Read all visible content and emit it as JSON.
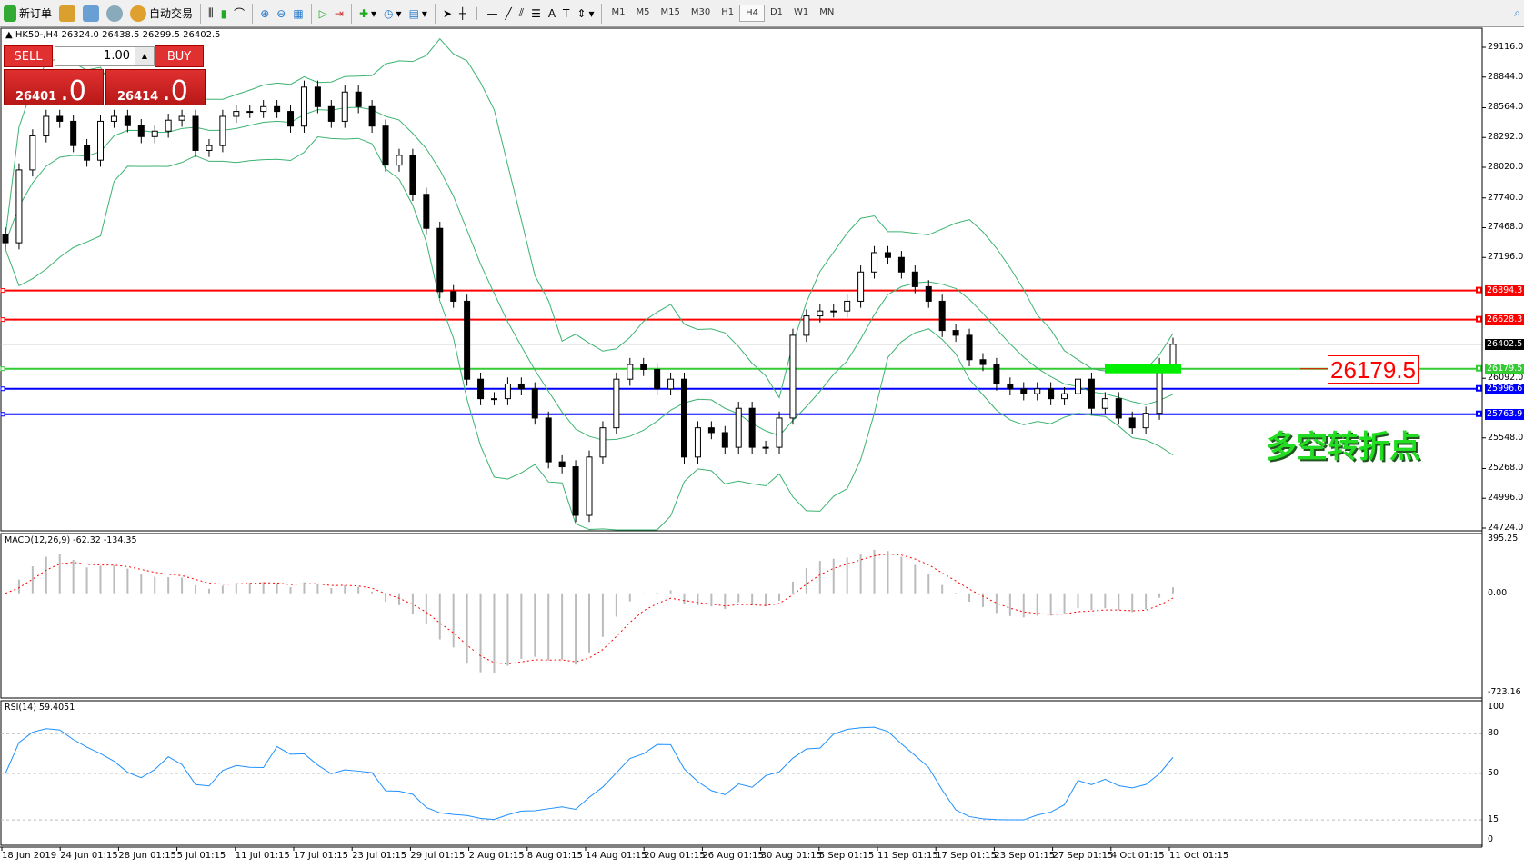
{
  "toolbar": {
    "new_order": "新订单",
    "auto_trading": "自动交易",
    "timeframes": [
      "M1",
      "M5",
      "M15",
      "M30",
      "H1",
      "H4",
      "D1",
      "W1",
      "MN"
    ],
    "active_timeframe": "H4"
  },
  "header": {
    "symbol": "HK50-,H4",
    "ohlc": "26324.0 26438.5 26299.5 26402.5"
  },
  "trade_panel": {
    "sell": "SELL",
    "buy": "BUY",
    "lot": "1.00",
    "bid_main": "26401",
    "bid_frac": ".0",
    "ask_main": "26414",
    "ask_frac": ".0"
  },
  "price_axis": {
    "max": 29116,
    "min": 24724,
    "ticks": [
      "29116.0",
      "28844.0",
      "28564.0",
      "28292.0",
      "28020.0",
      "27740.0",
      "27468.0",
      "27196.0",
      "26092.0",
      "25548.0",
      "25268.0",
      "24996.0",
      "24724.0"
    ]
  },
  "levels": [
    {
      "value": "26894.3",
      "color": "#ff0000"
    },
    {
      "value": "26628.3",
      "color": "#ff0000"
    },
    {
      "value": "26402.5",
      "color": "#000000",
      "kind": "current"
    },
    {
      "value": "26179.5",
      "color": "#33cc33"
    },
    {
      "value": "25996.6",
      "color": "#0000ff"
    },
    {
      "value": "25763.9",
      "color": "#0000ff"
    }
  ],
  "annotation": {
    "box_label": "26179.5",
    "text": "多空转折点",
    "text_color": "#22dd22"
  },
  "closes": [
    27330,
    27996,
    28307,
    28485,
    28440,
    28218,
    28085,
    28440,
    28485,
    28400,
    28300,
    28350,
    28450,
    28485,
    28174,
    28218,
    28485,
    28530,
    28530,
    28574,
    28530,
    28396,
    28752,
    28574,
    28440,
    28707,
    28574,
    28396,
    28040,
    28129,
    27773,
    27462,
    26884,
    26796,
    26084,
    25906,
    25906,
    26040,
    25996,
    25729,
    25329,
    25284,
    24840,
    25373,
    25640,
    26084,
    26218,
    26173,
    25996,
    26084,
    25373,
    25640,
    25596,
    25462,
    25818,
    25462,
    25462,
    25729,
    26485,
    26662,
    26707,
    26707,
    26796,
    27063,
    27240,
    27196,
    27063,
    26929,
    26796,
    26529,
    26485,
    26262,
    26218,
    26040,
    25996,
    25951,
    25996,
    25906,
    25951,
    26084,
    25818,
    25906,
    25729,
    25640,
    25773,
    26218,
    26402.5
  ],
  "macd": {
    "label": "MACD(12,26,9) -62.32 -134.35",
    "max": 395.25,
    "min": -723.16,
    "ticks": [
      "395.25",
      "0.00",
      "-723.16"
    ]
  },
  "rsi": {
    "label": "RSI(14) 59.4051",
    "ticks": [
      "100",
      "80",
      "50",
      "15",
      "0"
    ]
  },
  "time_axis": [
    "18 Jun 2019",
    "24 Jun 01:15",
    "28 Jun 01:15",
    "5 Jul 01:15",
    "11 Jul 01:15",
    "17 Jul 01:15",
    "23 Jul 01:15",
    "29 Jul 01:15",
    "2 Aug 01:15",
    "8 Aug 01:15",
    "14 Aug 01:15",
    "20 Aug 01:15",
    "26 Aug 01:15",
    "30 Aug 01:15",
    "5 Sep 01:15",
    "11 Sep 01:15",
    "17 Sep 01:15",
    "23 Sep 01:15",
    "27 Sep 01:15",
    "4 Oct 01:15",
    "11 Oct 01:15"
  ]
}
